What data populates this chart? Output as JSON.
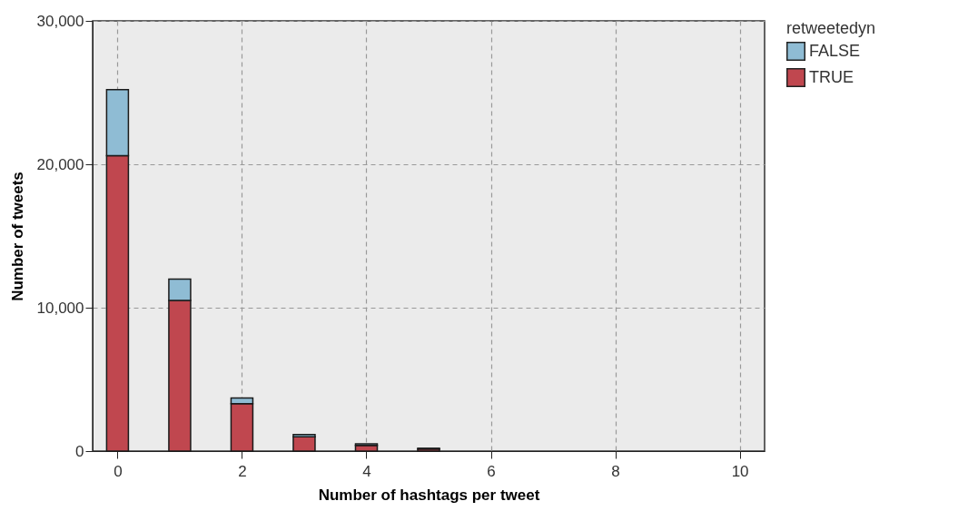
{
  "chart_data": {
    "type": "bar",
    "stacked": true,
    "xlabel": "Number of hashtags per tweet",
    "ylabel": "Number of tweets",
    "legend_title": "retweetedyn",
    "x": [
      0,
      1,
      2,
      3,
      4,
      5
    ],
    "series": [
      {
        "name": "TRUE",
        "color": "#c0474f",
        "values": [
          20600,
          10500,
          3300,
          1000,
          400,
          150
        ]
      },
      {
        "name": "FALSE",
        "color": "#8fbcd4",
        "values": [
          4600,
          1500,
          400,
          150,
          100,
          50
        ]
      }
    ],
    "xlim": [
      -0.4,
      10.4
    ],
    "xticks": [
      0,
      2,
      4,
      6,
      8,
      10
    ],
    "ylim": [
      0,
      30000
    ],
    "yticks": [
      0,
      {
        "value": 10000,
        "label": "10,000"
      },
      {
        "value": 20000,
        "label": "20,000"
      },
      {
        "value": 30000,
        "label": "30,000"
      }
    ],
    "grid": true,
    "legend": "right"
  }
}
